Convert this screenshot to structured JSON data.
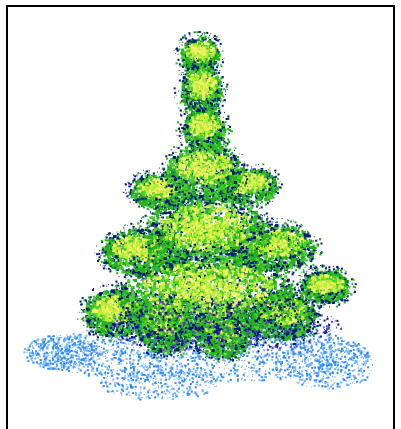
{
  "image": {
    "subject": "pixel-stipple-spruce-tree-on-snow",
    "colors": {
      "background": "#ffffff",
      "frame": "#000000",
      "outline_dark_blue": "#001a7a",
      "foliage_green": "#23b11c",
      "foliage_mid_green": "#4fcf2c",
      "foliage_light": "#b5ef2e",
      "foliage_highlight": "#f2f06a",
      "snow_blue": "#2f8df4",
      "snow_light": "#7db8ff",
      "purple_shadow": "#6f39d8"
    }
  }
}
